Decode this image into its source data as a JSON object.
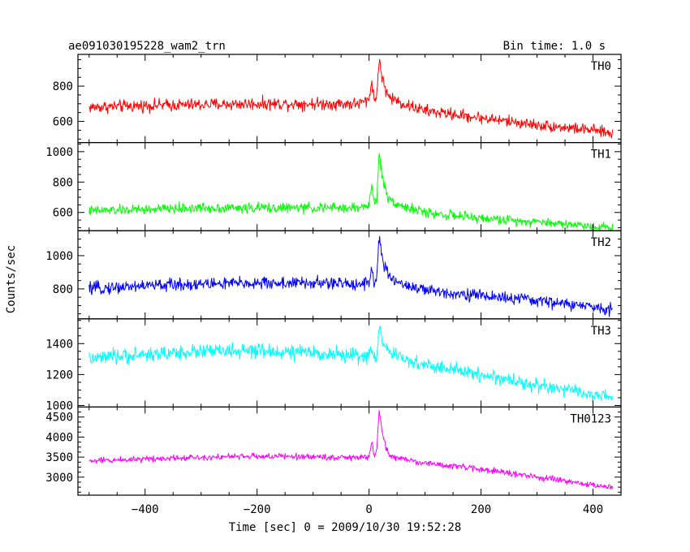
{
  "chart_data": {
    "type": "line",
    "title": "ae091030195228_wam2_trn",
    "subtitle": "Bin time: 1.0 s",
    "xlabel": "Time [sec] 0 = 2009/10/30 19:52:28",
    "ylabel": "Counts/sec",
    "xlim": [
      -520,
      450
    ],
    "x_ticks": [
      -400,
      -200,
      0,
      200,
      400
    ],
    "x_tick_labels": [
      "−400",
      "−200",
      "0",
      "200",
      "400"
    ],
    "grid": false,
    "legend": "none",
    "series": [
      {
        "name": "TH0",
        "color": "#ff0000",
        "ylim": [
          480,
          980
        ],
        "y_ticks": [
          600,
          800
        ],
        "y_tick_labels": [
          "600",
          "800"
        ],
        "x": [
          -500,
          -400,
          -300,
          -200,
          -100,
          -20,
          0,
          5,
          10,
          14,
          18,
          25,
          35,
          60,
          100,
          200,
          300,
          400,
          435
        ],
        "y": [
          680,
          690,
          695,
          700,
          700,
          700,
          720,
          840,
          700,
          760,
          960,
          820,
          740,
          700,
          660,
          620,
          580,
          550,
          530
        ]
      },
      {
        "name": "TH1",
        "color": "#00ff00",
        "ylim": [
          480,
          1060
        ],
        "y_ticks": [
          600,
          800,
          1000
        ],
        "y_tick_labels": [
          "600",
          "800",
          "1000"
        ],
        "x": [
          -500,
          -400,
          -300,
          -200,
          -100,
          -20,
          0,
          5,
          10,
          14,
          18,
          25,
          35,
          60,
          100,
          200,
          300,
          400,
          435
        ],
        "y": [
          610,
          620,
          630,
          630,
          630,
          630,
          650,
          780,
          640,
          700,
          1000,
          800,
          690,
          640,
          600,
          560,
          540,
          510,
          500
        ]
      },
      {
        "name": "TH2",
        "color": "#0000ff",
        "ylim": [
          620,
          1150
        ],
        "y_ticks": [
          800,
          1000
        ],
        "y_tick_labels": [
          "800",
          "1000"
        ],
        "x": [
          -500,
          -400,
          -300,
          -200,
          -100,
          -20,
          0,
          5,
          10,
          14,
          18,
          25,
          35,
          60,
          100,
          200,
          300,
          400,
          435
        ],
        "y": [
          800,
          820,
          830,
          835,
          835,
          830,
          840,
          930,
          820,
          880,
          1110,
          960,
          870,
          830,
          790,
          760,
          730,
          690,
          680
        ]
      },
      {
        "name": "TH3",
        "color": "#00ffff",
        "ylim": [
          990,
          1560
        ],
        "y_ticks": [
          1000,
          1200,
          1400
        ],
        "y_tick_labels": [
          "1000",
          "1200",
          "1400"
        ],
        "x": [
          -500,
          -400,
          -300,
          -200,
          -100,
          -20,
          0,
          5,
          10,
          14,
          18,
          25,
          35,
          60,
          100,
          200,
          300,
          400,
          435
        ],
        "y": [
          1300,
          1330,
          1350,
          1350,
          1340,
          1320,
          1320,
          1360,
          1300,
          1340,
          1500,
          1420,
          1340,
          1300,
          1260,
          1200,
          1130,
          1070,
          1050
        ]
      },
      {
        "name": "TH0123",
        "color": "#ff00ff",
        "ylim": [
          2550,
          4750
        ],
        "y_ticks": [
          3000,
          3500,
          4000,
          4500
        ],
        "y_tick_labels": [
          "3000",
          "3500",
          "4000",
          "4500"
        ],
        "x": [
          -500,
          -400,
          -300,
          -200,
          -100,
          -20,
          0,
          5,
          10,
          14,
          18,
          25,
          35,
          60,
          100,
          200,
          300,
          400,
          435
        ],
        "y": [
          3400,
          3460,
          3500,
          3520,
          3510,
          3480,
          3520,
          3900,
          3450,
          3700,
          4650,
          4000,
          3550,
          3450,
          3350,
          3200,
          3000,
          2800,
          2750
        ]
      }
    ]
  }
}
